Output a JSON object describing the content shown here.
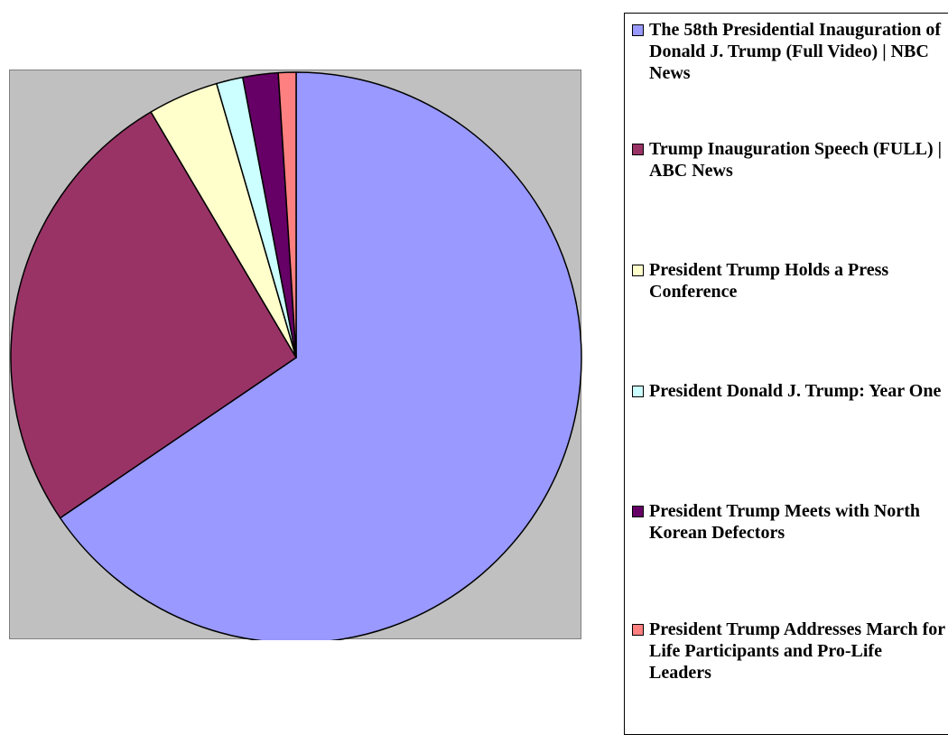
{
  "chart_data": {
    "type": "pie",
    "start_angle_deg": 0,
    "direction": "clockwise",
    "legend_position": "right",
    "slices": [
      {
        "label": "The 58th Presidential Inauguration of Donald J. Trump (Full Video) | NBC News",
        "value": 65.5,
        "color": "#9999ff"
      },
      {
        "label": "Trump Inauguration Speech (FULL) | ABC News",
        "value": 26.0,
        "color": "#993366"
      },
      {
        "label": "President Trump Holds a Press Conference",
        "value": 4.0,
        "color": "#ffffcc"
      },
      {
        "label": "President Donald J. Trump: Year One",
        "value": 1.5,
        "color": "#ccffff"
      },
      {
        "label": "President Trump Meets with North Korean Defectors",
        "value": 2.0,
        "color": "#660066"
      },
      {
        "label": "President Trump Addresses March for Life Participants and Pro-Life Leaders",
        "value": 1.0,
        "color": "#ff8080"
      }
    ]
  }
}
